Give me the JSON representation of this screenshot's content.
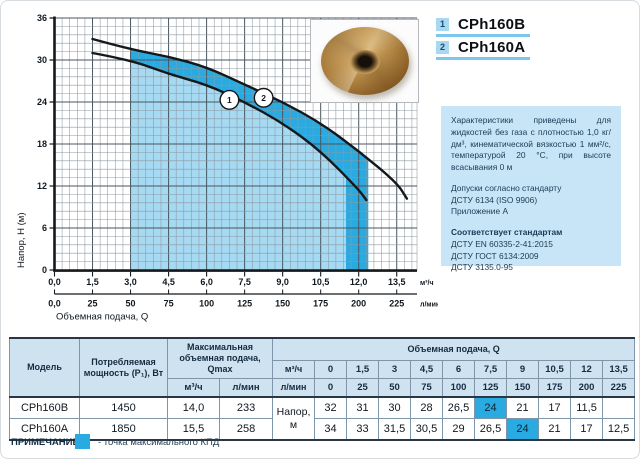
{
  "colors": {
    "accent_cyan": "#29abe2",
    "light_fill": "#a6d9f2",
    "header_bg": "#cfe2ef",
    "info_bg": "#c7e5f6"
  },
  "legend": {
    "items": [
      {
        "num": "1",
        "label": "CPh160B"
      },
      {
        "num": "2",
        "label": "CPh160A"
      }
    ]
  },
  "product_photo": "brass pump impeller",
  "info": {
    "paragraph": "Характеристики приведены для жидкостей без газа с плотностью 1,0 кг/дм³, кинематической вязкостью 1 мм²/с, температурой 20 °С, при высоте всасывания 0 м",
    "tolerances": [
      "Допуски согласно стандарту",
      "ДСТУ 6134 (ISO 9906)",
      "Приложение А"
    ],
    "standards_title": "Соответствует стандартам",
    "standards": [
      "ДСТУ EN 60335-2-41:2015",
      "ДСТУ ГОСТ 6134:2009",
      "ДСТУ 3135.0-95"
    ]
  },
  "chart_data": {
    "type": "line",
    "title": "",
    "xlabel": "Объемная подача, Q",
    "ylabel": "Напор, H (м)",
    "xlim": [
      0,
      14.3
    ],
    "ylim": [
      0,
      36
    ],
    "y_ticks": [
      0,
      6,
      12,
      18,
      24,
      30,
      36
    ],
    "x_axis_primary": {
      "unit": "м³/ч",
      "tick_values": [
        0,
        1.5,
        3,
        4.5,
        6,
        7.5,
        9,
        10.5,
        12,
        13.5
      ],
      "tick_labels": [
        "0,0",
        "1,5",
        "3,0",
        "4,5",
        "6,0",
        "7,5",
        "9,0",
        "10,5",
        "12,0",
        "13,5"
      ]
    },
    "x_axis_secondary": {
      "unit": "л/мин",
      "tick_labels": [
        "0,0",
        "25",
        "50",
        "75",
        "100",
        "125",
        "150",
        "175",
        "200",
        "225"
      ]
    },
    "grid": {
      "minor_x": 0.3,
      "minor_y": 1.2,
      "major_every": 5
    },
    "series": [
      {
        "name": "CPh160B",
        "marker": "1",
        "x": [
          1.5,
          3,
          4.5,
          6,
          7.5,
          9,
          10.5,
          12,
          12.3
        ],
        "y": [
          31,
          30,
          28,
          26.5,
          24,
          21,
          17,
          11.5,
          10
        ]
      },
      {
        "name": "CPh160A",
        "marker": "2",
        "x": [
          1.5,
          3,
          4.5,
          6,
          7.5,
          9,
          10.5,
          12,
          13.5,
          13.9
        ],
        "y": [
          33,
          31.5,
          30.5,
          29,
          26.5,
          24,
          21,
          17,
          12.5,
          10.2
        ]
      }
    ],
    "markers": [
      {
        "label": "1",
        "x": 6.9,
        "y": 24.3
      },
      {
        "label": "2",
        "x": 8.25,
        "y": 24.6
      }
    ],
    "fills": {
      "from_x": 3,
      "light_to_x": 11.5,
      "dark_band_to_x": 12.38,
      "light_color": "#a6d9f2",
      "dark_color": "#29abe2"
    },
    "legend_position": "top-right"
  },
  "table": {
    "headers": {
      "model": "Модель",
      "power": "Потребляемая мощность (P₁), Вт",
      "qmax": "Максимальная объемная подача, Qmax",
      "qmax_m3h": "м³/ч",
      "qmax_lmin": "л/мин",
      "flow": "Объемная подача, Q",
      "unit_m3h": "м³/ч",
      "unit_lmin": "л/мин",
      "napor_line1": "Напор,",
      "napor_line2": "м"
    },
    "flow_m3h": [
      "0",
      "1,5",
      "3",
      "4,5",
      "6",
      "7,5",
      "9",
      "10,5",
      "12",
      "13,5"
    ],
    "flow_lmin": [
      "0",
      "25",
      "50",
      "75",
      "100",
      "125",
      "150",
      "175",
      "200",
      "225"
    ],
    "rows": [
      {
        "model": "CPh160B",
        "power": "1450",
        "qmax_m3h": "14,0",
        "qmax_lmin": "233",
        "values": [
          "32",
          "31",
          "30",
          "28",
          "26,5",
          "24",
          "21",
          "17",
          "11,5",
          ""
        ],
        "highlight": 5
      },
      {
        "model": "CPh160A",
        "power": "1850",
        "qmax_m3h": "15,5",
        "qmax_lmin": "258",
        "values": [
          "34",
          "33",
          "31,5",
          "30,5",
          "29",
          "26,5",
          "24",
          "21",
          "17",
          "12,5"
        ],
        "highlight": 6
      }
    ]
  },
  "note": {
    "label": "ПРИМЕЧАНИЕ:",
    "text": "- точка максимального КПД"
  }
}
